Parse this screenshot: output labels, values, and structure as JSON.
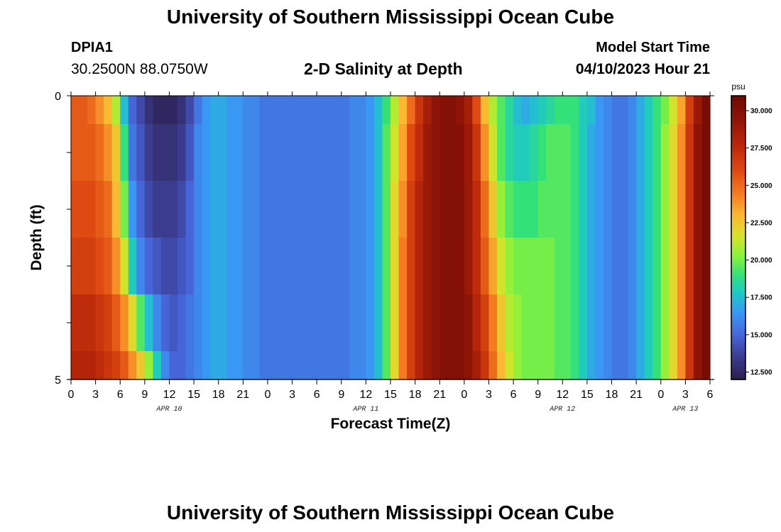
{
  "header": {
    "title": "University of Southern Mississippi Ocean Cube",
    "station": "DPIA1",
    "coordinates": "30.2500N  88.0750W",
    "subtitle": "2-D Salinity at Depth",
    "start_label": "Model Start Time",
    "start_value": "04/10/2023 Hour 21"
  },
  "footer": {
    "title": "University of Southern Mississippi Ocean Cube"
  },
  "chart_data": {
    "type": "heatmap",
    "title": "2-D Salinity at Depth",
    "xlabel": "Forecast Time(Z)",
    "ylabel": "Depth (ft)",
    "x_start_hour": 0,
    "x_step_hours": 1,
    "xlim_hours": [
      0,
      78
    ],
    "x_tick_labels": [
      "0",
      "3",
      "6",
      "9",
      "12",
      "15",
      "18",
      "21",
      "0",
      "3",
      "6",
      "9",
      "12",
      "15",
      "18",
      "21",
      "0",
      "3",
      "6",
      "9",
      "12",
      "15",
      "18",
      "21",
      "0",
      "3",
      "6"
    ],
    "x_day_labels": [
      {
        "label": "APR 10",
        "hour": 12
      },
      {
        "label": "APR 11",
        "hour": 36
      },
      {
        "label": "APR 12",
        "hour": 60
      },
      {
        "label": "APR 13",
        "hour": 75
      }
    ],
    "y_tick_labels": [
      "0",
      "5"
    ],
    "ylim": [
      0,
      5
    ],
    "depth_layers": [
      {
        "top": 0,
        "bottom": 0.5
      },
      {
        "top": 0.5,
        "bottom": 1.5
      },
      {
        "top": 1.5,
        "bottom": 2.5
      },
      {
        "top": 2.5,
        "bottom": 3.5
      },
      {
        "top": 3.5,
        "bottom": 4.5
      },
      {
        "top": 4.5,
        "bottom": 5
      }
    ],
    "salinity_psu": [
      [
        25.5,
        25.5,
        25.0,
        24.0,
        23.0,
        21.0,
        17.5,
        15.0,
        14.0,
        13.0,
        12.5,
        12.5,
        12.5,
        13.0,
        14.0,
        15.5,
        16.5,
        17.0,
        17.0,
        16.5,
        16.5,
        16.0,
        16.0,
        15.5,
        15.5,
        15.5,
        15.5,
        15.5,
        15.5,
        15.5,
        15.5,
        15.5,
        15.5,
        15.5,
        16.0,
        16.0,
        16.5,
        17.5,
        19.0,
        21.0,
        23.0,
        25.0,
        27.0,
        28.5,
        29.5,
        30.0,
        30.0,
        29.5,
        28.5,
        26.0,
        23.0,
        21.0,
        19.5,
        18.5,
        17.5,
        17.0,
        17.5,
        18.0,
        18.5,
        19.0,
        19.0,
        19.0,
        18.0,
        17.5,
        16.5,
        16.0,
        15.5,
        15.5,
        16.0,
        17.0,
        18.0,
        19.0,
        20.0,
        21.5,
        23.5,
        26.5,
        29.0,
        30.5,
        31.0
      ],
      [
        25.5,
        25.5,
        25.5,
        25.0,
        24.0,
        22.5,
        19.0,
        15.5,
        14.5,
        13.5,
        13.0,
        13.0,
        13.0,
        13.5,
        14.5,
        16.0,
        16.5,
        17.0,
        17.0,
        16.5,
        16.5,
        16.0,
        16.0,
        15.5,
        15.5,
        15.5,
        15.5,
        15.5,
        15.5,
        15.5,
        15.5,
        15.5,
        15.5,
        15.5,
        16.0,
        16.0,
        16.5,
        17.5,
        19.5,
        21.5,
        23.5,
        26.0,
        27.5,
        29.0,
        29.5,
        30.0,
        30.0,
        30.0,
        29.0,
        27.0,
        24.0,
        21.5,
        19.5,
        18.5,
        18.0,
        18.0,
        18.5,
        19.0,
        19.5,
        19.5,
        19.5,
        19.0,
        18.0,
        17.0,
        16.5,
        16.0,
        15.5,
        15.5,
        16.0,
        17.0,
        18.0,
        19.0,
        20.5,
        22.0,
        24.0,
        27.0,
        29.5,
        30.5,
        31.0
      ],
      [
        26.0,
        26.0,
        26.0,
        25.5,
        25.0,
        23.0,
        20.0,
        16.5,
        15.0,
        14.0,
        13.5,
        13.5,
        13.5,
        14.0,
        15.0,
        16.0,
        16.5,
        17.0,
        17.0,
        16.5,
        16.5,
        16.0,
        16.0,
        15.5,
        15.5,
        15.5,
        15.5,
        15.5,
        15.5,
        15.5,
        15.5,
        15.5,
        15.5,
        15.5,
        16.0,
        16.0,
        16.5,
        17.5,
        19.5,
        22.0,
        24.0,
        26.5,
        28.0,
        29.0,
        29.5,
        30.0,
        30.0,
        30.0,
        29.0,
        27.5,
        25.0,
        22.5,
        20.5,
        19.5,
        19.0,
        19.0,
        19.0,
        19.5,
        19.5,
        19.5,
        19.5,
        19.0,
        18.0,
        17.0,
        16.5,
        16.0,
        15.5,
        15.5,
        16.0,
        17.0,
        18.0,
        19.0,
        20.5,
        22.0,
        24.0,
        27.0,
        29.5,
        30.5,
        31.0
      ],
      [
        26.5,
        26.5,
        26.5,
        26.0,
        25.5,
        24.0,
        21.5,
        18.0,
        16.0,
        15.0,
        14.5,
        14.0,
        14.0,
        14.5,
        15.0,
        16.0,
        16.5,
        17.0,
        17.0,
        16.5,
        16.5,
        16.0,
        16.0,
        15.5,
        15.5,
        15.5,
        15.5,
        15.5,
        15.5,
        15.5,
        15.5,
        15.5,
        15.5,
        15.5,
        16.0,
        16.0,
        16.5,
        17.5,
        19.5,
        22.0,
        24.5,
        26.5,
        28.0,
        29.0,
        29.5,
        30.0,
        30.0,
        30.0,
        29.0,
        27.5,
        25.5,
        23.5,
        21.5,
        20.5,
        20.0,
        20.0,
        20.0,
        20.0,
        20.0,
        19.5,
        19.5,
        19.0,
        18.0,
        17.0,
        16.5,
        16.0,
        15.5,
        15.5,
        16.0,
        17.0,
        18.0,
        19.0,
        20.5,
        22.0,
        24.0,
        27.0,
        29.5,
        30.5,
        31.0
      ],
      [
        27.5,
        27.5,
        27.5,
        27.0,
        26.5,
        25.5,
        24.0,
        22.0,
        19.5,
        17.5,
        16.0,
        15.0,
        14.5,
        15.0,
        15.5,
        16.0,
        16.5,
        17.0,
        17.0,
        16.5,
        16.5,
        16.0,
        16.0,
        15.5,
        15.5,
        15.5,
        15.5,
        15.5,
        15.5,
        15.5,
        15.5,
        15.5,
        15.5,
        15.5,
        16.0,
        16.0,
        16.5,
        17.5,
        19.5,
        22.0,
        24.5,
        26.5,
        28.0,
        29.0,
        29.5,
        30.0,
        30.0,
        30.0,
        29.5,
        28.0,
        26.5,
        24.5,
        22.5,
        21.0,
        20.5,
        20.0,
        20.0,
        20.0,
        20.0,
        19.5,
        19.5,
        19.0,
        18.0,
        17.0,
        16.5,
        16.0,
        15.5,
        15.5,
        16.0,
        17.0,
        18.0,
        19.0,
        20.5,
        22.0,
        24.0,
        27.0,
        29.5,
        30.5,
        31.0
      ],
      [
        28.0,
        28.0,
        28.0,
        27.5,
        27.0,
        26.5,
        25.5,
        24.0,
        22.5,
        20.5,
        18.0,
        16.0,
        15.0,
        15.0,
        15.5,
        16.0,
        16.5,
        17.0,
        17.0,
        16.5,
        16.5,
        16.0,
        16.0,
        15.5,
        15.5,
        15.5,
        15.5,
        15.5,
        15.5,
        15.5,
        15.5,
        15.5,
        15.5,
        15.5,
        16.0,
        16.0,
        16.5,
        17.5,
        19.5,
        22.0,
        24.5,
        26.5,
        28.0,
        29.0,
        29.5,
        30.0,
        30.0,
        30.0,
        29.5,
        28.5,
        27.0,
        25.0,
        23.0,
        21.5,
        20.5,
        20.0,
        20.0,
        20.0,
        20.0,
        19.5,
        19.5,
        19.0,
        18.0,
        17.0,
        16.5,
        16.0,
        15.5,
        15.5,
        16.0,
        17.0,
        18.0,
        19.0,
        20.5,
        22.0,
        24.0,
        27.0,
        29.5,
        30.5,
        31.0
      ]
    ],
    "colorbar": {
      "unit": "psu",
      "min": 12.0,
      "max": 31.0,
      "ticks": [
        "30.000",
        "27.500",
        "25.000",
        "22.500",
        "20.000",
        "17.500",
        "15.000",
        "12.500"
      ],
      "tick_values": [
        30.0,
        27.5,
        25.0,
        22.5,
        20.0,
        17.5,
        15.0,
        12.5
      ],
      "colormap": [
        [
          12.0,
          "#2c1f4a"
        ],
        [
          13.5,
          "#3b3b8f"
        ],
        [
          15.0,
          "#4665d8"
        ],
        [
          16.5,
          "#3a98f5"
        ],
        [
          17.8,
          "#1dc8c8"
        ],
        [
          19.0,
          "#33e07a"
        ],
        [
          20.3,
          "#8af23c"
        ],
        [
          21.6,
          "#d6e32a"
        ],
        [
          23.0,
          "#fbb833"
        ],
        [
          24.5,
          "#f47b22"
        ],
        [
          26.0,
          "#de4a12"
        ],
        [
          27.8,
          "#b8260a"
        ],
        [
          29.5,
          "#8d1406"
        ],
        [
          31.0,
          "#6e0a04"
        ]
      ]
    }
  }
}
